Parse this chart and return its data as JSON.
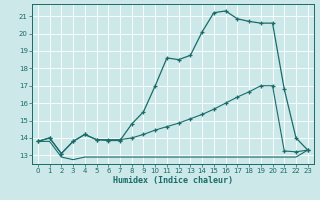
{
  "xlabel": "Humidex (Indice chaleur)",
  "bg_color": "#cce8e8",
  "grid_color": "#aacccc",
  "line_color": "#1a6b6b",
  "xlim": [
    -0.5,
    23.5
  ],
  "ylim": [
    12.5,
    21.7
  ],
  "yticks": [
    13,
    14,
    15,
    16,
    17,
    18,
    19,
    20,
    21
  ],
  "xticks": [
    0,
    1,
    2,
    3,
    4,
    5,
    6,
    7,
    8,
    9,
    10,
    11,
    12,
    13,
    14,
    15,
    16,
    17,
    18,
    19,
    20,
    21,
    22,
    23
  ],
  "line1_x": [
    0,
    1,
    2,
    3,
    4,
    5,
    6,
    7,
    8,
    9,
    10,
    11,
    12,
    13,
    14,
    15,
    16,
    17,
    18,
    19,
    20,
    21,
    22,
    23
  ],
  "line1_y": [
    13.8,
    13.8,
    12.9,
    12.75,
    12.9,
    12.9,
    12.9,
    12.9,
    12.9,
    12.9,
    12.9,
    12.9,
    12.9,
    12.9,
    12.9,
    12.9,
    12.9,
    12.9,
    12.9,
    12.9,
    12.9,
    12.9,
    12.9,
    13.3
  ],
  "line2_x": [
    0,
    1,
    2,
    3,
    4,
    5,
    6,
    7,
    8,
    9,
    10,
    11,
    12,
    13,
    14,
    15,
    16,
    17,
    18,
    19,
    20,
    21,
    22,
    23
  ],
  "line2_y": [
    13.8,
    14.0,
    13.1,
    13.8,
    14.2,
    13.9,
    13.85,
    13.85,
    14.8,
    15.5,
    17.0,
    18.6,
    18.5,
    18.75,
    20.1,
    21.2,
    21.3,
    20.85,
    20.7,
    20.6,
    20.6,
    16.8,
    14.0,
    13.3
  ],
  "line3_x": [
    0,
    1,
    2,
    3,
    4,
    5,
    6,
    7,
    8,
    9,
    10,
    11,
    12,
    13,
    14,
    15,
    16,
    17,
    18,
    19,
    20,
    21,
    22,
    23
  ],
  "line3_y": [
    13.8,
    14.0,
    13.1,
    13.8,
    14.2,
    13.9,
    13.9,
    13.9,
    14.0,
    14.2,
    14.45,
    14.65,
    14.85,
    15.1,
    15.35,
    15.65,
    16.0,
    16.35,
    16.65,
    17.0,
    17.0,
    13.25,
    13.2,
    13.3
  ]
}
